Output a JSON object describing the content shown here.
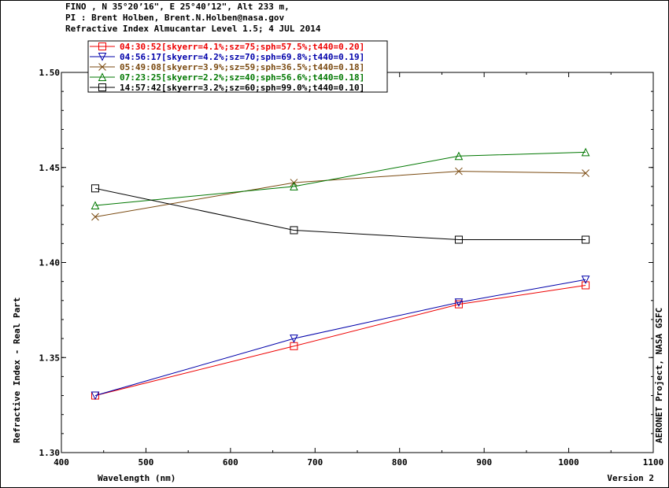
{
  "header": {
    "line1": "FINO , N 35°20’16\", E 25°40’12\", Alt 233 m,",
    "line2": "PI : Brent Holben, Brent.N.Holben@nasa.gov",
    "line3": "Refractive Index Almucantar Level 1.5; 4 JUL 2014"
  },
  "chart_data": {
    "type": "line",
    "xlabel": "Wavelength (nm)",
    "ylabel": "Refractive Index - Real Part",
    "right_label": "AERONET Project, NASA GSFC",
    "version_label": "Version 2",
    "xlim": [
      400,
      1100
    ],
    "ylim": [
      1.3,
      1.5
    ],
    "xticks": [
      400,
      500,
      600,
      700,
      800,
      900,
      1000,
      1100
    ],
    "yticks": [
      1.3,
      1.35,
      1.4,
      1.45,
      1.5
    ],
    "ytick_labels": [
      "1.30",
      "1.35",
      "1.40",
      "1.45",
      "1.50"
    ],
    "x": [
      440,
      675,
      870,
      1020
    ],
    "legend_position": "top-left",
    "grid": false,
    "series": [
      {
        "name": "04:30:52[skyerr=4.1%;sz=75;sph=57.5%;t440=0.20]",
        "color": "#ee0000",
        "marker": "square",
        "values": [
          1.33,
          1.356,
          1.378,
          1.388
        ]
      },
      {
        "name": "04:56:17[skyerr=4.2%;sz=70;sph=69.8%;t440=0.19]",
        "color": "#0000aa",
        "marker": "triangle-down",
        "values": [
          1.33,
          1.36,
          1.379,
          1.391
        ]
      },
      {
        "name": "05:49:08[skyerr=3.9%;sz=59;sph=36.5%;t440=0.18]",
        "color": "#7a4a10",
        "marker": "x",
        "values": [
          1.424,
          1.442,
          1.448,
          1.447
        ]
      },
      {
        "name": "07:23:25[skyerr=2.2%;sz=40;sph=56.6%;t440=0.18]",
        "color": "#007700",
        "marker": "triangle-up",
        "values": [
          1.43,
          1.44,
          1.456,
          1.458
        ]
      },
      {
        "name": "14:57:42[skyerr=3.2%;sz=60;sph=99.0%;t440=0.10]",
        "color": "#000000",
        "marker": "square",
        "values": [
          1.439,
          1.417,
          1.412,
          1.412
        ]
      }
    ]
  }
}
